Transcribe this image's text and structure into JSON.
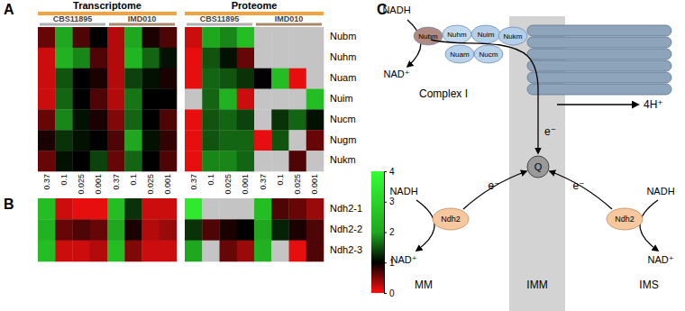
{
  "chart_data": [
    {
      "type": "heatmap",
      "panel_label": "A",
      "groups": [
        {
          "label": "Transcriptome",
          "subgroups": [
            "CBS11895",
            "IMD010"
          ]
        },
        {
          "label": "Proteome",
          "subgroups": [
            "CBS11895",
            "IMD010"
          ]
        }
      ],
      "categories": [
        "0.37",
        "0.1",
        "0.025",
        "0.001",
        "0.37",
        "0.1",
        "0.025",
        "0.001",
        "0.37",
        "0.1",
        "0.025",
        "0.001",
        "0.37",
        "0.1",
        "0.025",
        "0.001"
      ],
      "rows": [
        "Nubm",
        "Nuhm",
        "Nuam",
        "Nuim",
        "Nucm",
        "Nugm",
        "Nukm"
      ],
      "values": [
        [
          0.6,
          2.0,
          0.7,
          1.0,
          0.3,
          2.0,
          0.9,
          0.7,
          0.2,
          2.0,
          1.8,
          2.5,
          null,
          null,
          null,
          null
        ],
        [
          0.2,
          2.2,
          1.8,
          0.7,
          0.3,
          2.3,
          1.6,
          1.1,
          0.1,
          1.5,
          1.1,
          0.6,
          null,
          null,
          null,
          null
        ],
        [
          0.2,
          1.5,
          1.0,
          0.9,
          0.3,
          1.4,
          1.1,
          0.9,
          0.1,
          1.6,
          1.5,
          1.3,
          1.0,
          2.5,
          0.1,
          null
        ],
        [
          0.2,
          1.6,
          1.0,
          0.7,
          0.3,
          1.7,
          1.0,
          1.0,
          null,
          1.6,
          2.2,
          0.2,
          null,
          null,
          null,
          2.5
        ],
        [
          0.6,
          1.8,
          1.1,
          0.9,
          0.5,
          1.6,
          1.0,
          0.7,
          0.1,
          1.5,
          1.6,
          1.4,
          null,
          1.3,
          1.6,
          1.1
        ],
        [
          0.9,
          1.3,
          1.1,
          1.0,
          0.7,
          2.0,
          1.1,
          0.8,
          0.1,
          1.5,
          1.6,
          1.6,
          0.1,
          1.5,
          null,
          0.6
        ],
        [
          0.6,
          1.1,
          1.0,
          1.4,
          0.6,
          1.6,
          1.0,
          0.7,
          0.1,
          1.8,
          1.8,
          1.6,
          null,
          null,
          0.7,
          null
        ]
      ],
      "colorbar": {
        "range": [
          0,
          4
        ],
        "ticks": [
          0,
          1,
          2,
          3,
          4
        ]
      }
    },
    {
      "type": "heatmap",
      "panel_label": "B",
      "rows": [
        "Ndh2-1",
        "Ndh2-2",
        "Ndh2-3"
      ],
      "values": [
        [
          2.5,
          0.2,
          0.1,
          0.1,
          2.5,
          1.3,
          0.2,
          0.2,
          3.5,
          null,
          null,
          null,
          2.5,
          0.7,
          0.6,
          0.4
        ],
        [
          2.2,
          0.6,
          0.7,
          0.6,
          2.0,
          0.9,
          0.3,
          0.4,
          1.3,
          0.7,
          0.9,
          1.0,
          2.0,
          1.2,
          0.9,
          0.7
        ],
        [
          2.5,
          0.2,
          0.2,
          0.3,
          2.5,
          0.5,
          0.2,
          0.2,
          2.0,
          null,
          0.6,
          0.4,
          2.2,
          null,
          0.1,
          0.7
        ]
      ]
    }
  ],
  "diagram": {
    "panel_label": "C",
    "complex_i": {
      "label": "Complex I",
      "subunits": [
        "Nubm",
        "Nuhm",
        "Nuim",
        "Nukm",
        "Nuam",
        "Nucm"
      ],
      "substrate": "NADH",
      "product": "NAD⁺",
      "proton_label": "4H⁺",
      "electron_label": "e⁻"
    },
    "quinone": "Q",
    "ndh2": [
      {
        "label": "Ndh2",
        "substrate": "NADH",
        "product": "NAD⁺",
        "electron_label": "e⁻"
      },
      {
        "label": "Ndh2",
        "substrate": "NADH",
        "product": "NAD⁺",
        "electron_label": "e⁻"
      }
    ],
    "compartments": [
      "MM",
      "IMM",
      "IMS"
    ]
  }
}
